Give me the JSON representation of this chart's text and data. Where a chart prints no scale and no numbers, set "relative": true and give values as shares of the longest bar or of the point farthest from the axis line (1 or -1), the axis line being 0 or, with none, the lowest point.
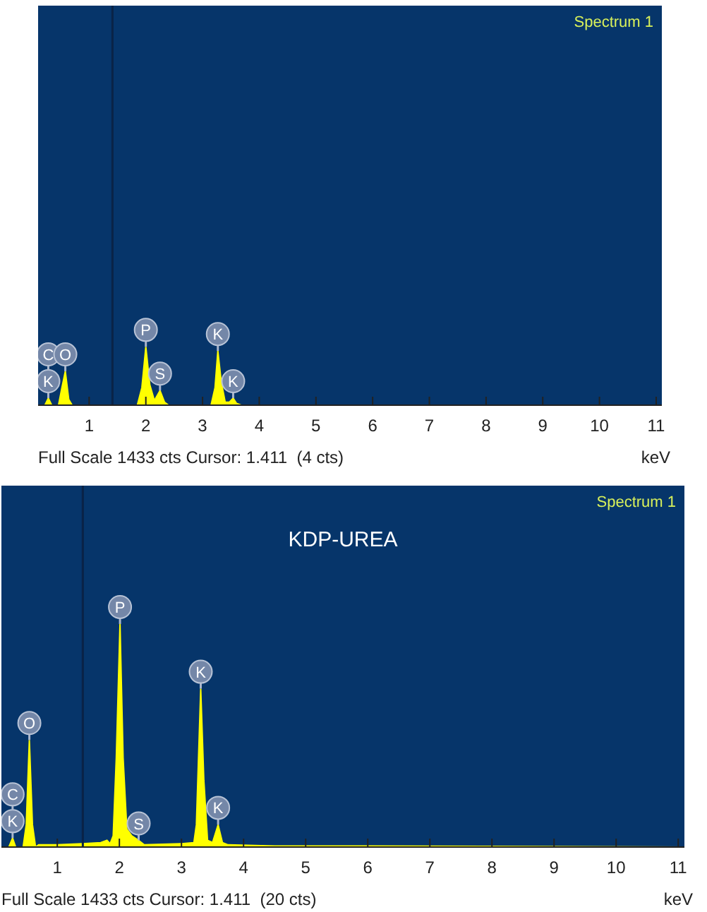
{
  "chart_data": [
    {
      "type": "area",
      "relative": true,
      "xlabel": "keV",
      "xlim": [
        0.1,
        11.1
      ],
      "xticks": [
        1,
        2,
        3,
        4,
        5,
        6,
        7,
        8,
        9,
        10,
        11
      ],
      "grid": false,
      "legend": false,
      "series": [
        {
          "color": "#ffff00",
          "x": [
            0.1,
            0.22,
            0.28,
            0.34,
            0.46,
            0.52,
            0.58,
            0.64,
            0.7,
            1.85,
            1.93,
            2.0,
            2.07,
            2.15,
            2.25,
            2.33,
            2.4,
            3.15,
            3.22,
            3.27,
            3.33,
            3.4,
            3.47,
            3.54,
            3.6,
            3.68,
            11.1
          ],
          "values": [
            0,
            0,
            0.12,
            0,
            0,
            0.3,
            0.58,
            0.1,
            0,
            0,
            0.3,
            1,
            0.35,
            0.08,
            0.25,
            0.05,
            0,
            0,
            0.3,
            0.93,
            0.4,
            0.05,
            0.05,
            0.12,
            0.03,
            0,
            0
          ]
        }
      ],
      "ref_lines": [
        {
          "axis": "x",
          "value": 1.411,
          "color": "#0a2347"
        }
      ],
      "annotations": [
        "Spectrum 1",
        "Full Scale 1433 cts Cursor: 1.411  (4 cts)",
        {
          "text": "K",
          "x": 0.28,
          "y": 0.12
        },
        {
          "text": "C",
          "x": 0.28,
          "y": 0.12
        },
        {
          "text": "O",
          "x": 0.58,
          "y": 0.58
        },
        {
          "text": "P",
          "x": 2.0,
          "y": 1
        },
        {
          "text": "S",
          "x": 2.25,
          "y": 0.25
        },
        {
          "text": "K",
          "x": 3.27,
          "y": 0.93
        },
        {
          "text": "K",
          "x": 3.54,
          "y": 0.12
        }
      ]
    },
    {
      "type": "area",
      "relative": true,
      "title": "KDP-UREA",
      "xlabel": "keV",
      "xlim": [
        0.1,
        11.1
      ],
      "xticks": [
        1,
        2,
        3,
        4,
        5,
        6,
        7,
        8,
        9,
        10,
        11
      ],
      "grid": false,
      "legend": false,
      "series": [
        {
          "color": "#ffff00",
          "x": [
            0.1,
            0.22,
            0.28,
            0.33,
            0.45,
            0.5,
            0.55,
            0.6,
            0.65,
            0.7,
            1.0,
            1.4,
            1.7,
            1.8,
            1.85,
            1.9,
            1.95,
            2.01,
            2.06,
            2.12,
            2.2,
            2.31,
            2.4,
            3.0,
            3.2,
            3.24,
            3.31,
            3.36,
            3.42,
            3.5,
            3.59,
            3.66,
            3.75,
            4.5,
            6.0,
            11.1
          ],
          "values": [
            0,
            0,
            0.04,
            0,
            0,
            0.1,
            0.48,
            0.1,
            0,
            0.01,
            0.01,
            0.015,
            0.02,
            0.03,
            0.015,
            0.05,
            0.4,
            1,
            0.4,
            0.08,
            0.05,
            0.03,
            0.01,
            0.015,
            0.02,
            0.1,
            0.71,
            0.3,
            0.03,
            0.02,
            0.1,
            0.02,
            0.01,
            0.005,
            0.005,
            0
          ]
        }
      ],
      "ref_lines": [
        {
          "axis": "x",
          "value": 1.411,
          "color": "#0a2347"
        }
      ],
      "annotations": [
        "Spectrum 1",
        "Full Scale 1433 cts Cursor: 1.411  (20 cts)",
        {
          "text": "K",
          "x": 0.28,
          "y": 0.04
        },
        {
          "text": "C",
          "x": 0.28,
          "y": 0.04
        },
        {
          "text": "O",
          "x": 0.55,
          "y": 0.48
        },
        {
          "text": "P",
          "x": 2.01,
          "y": 1
        },
        {
          "text": "S",
          "x": 2.31,
          "y": 0.03
        },
        {
          "text": "K",
          "x": 3.31,
          "y": 0.71
        },
        {
          "text": "K",
          "x": 3.59,
          "y": 0.1
        }
      ]
    }
  ]
}
